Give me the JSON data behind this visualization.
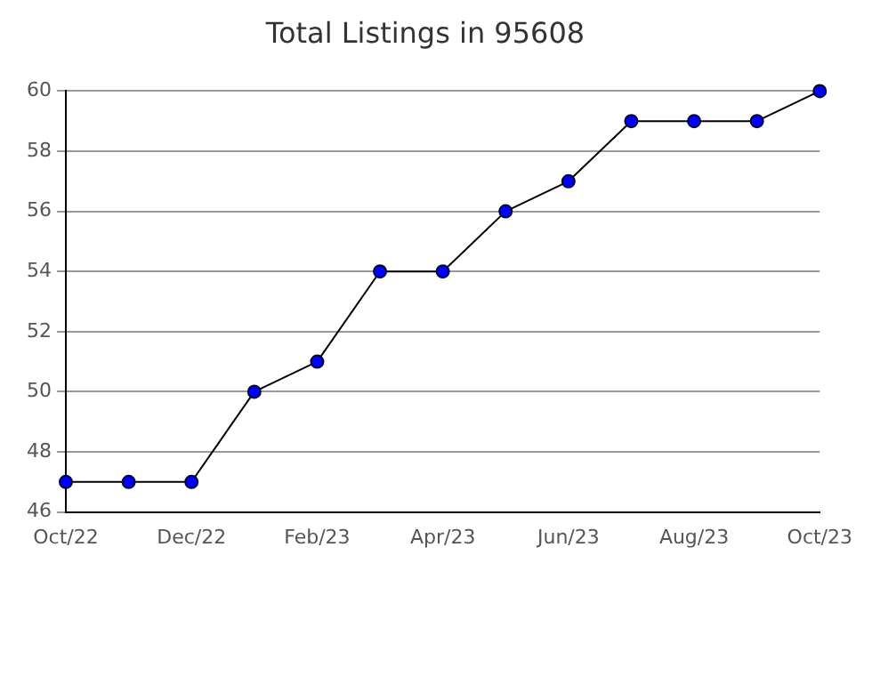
{
  "chart_data": {
    "type": "line",
    "title": "Total Listings in 95608",
    "categories": [
      "Oct/22",
      null,
      "Dec/22",
      null,
      "Feb/23",
      null,
      "Apr/23",
      null,
      "Jun/23",
      null,
      "Aug/23",
      null,
      "Oct/23"
    ],
    "series": [
      {
        "color": "#0000ff",
        "values": [
          47,
          47,
          47,
          50,
          51,
          54,
          54,
          56,
          57,
          59,
          59,
          59,
          60
        ]
      }
    ],
    "ylim": [
      46,
      60
    ],
    "yticks": [
      46,
      48,
      50,
      52,
      54,
      56,
      58,
      60
    ],
    "grid": "y",
    "legend": false,
    "marker": "circle",
    "line_style": "solid"
  }
}
